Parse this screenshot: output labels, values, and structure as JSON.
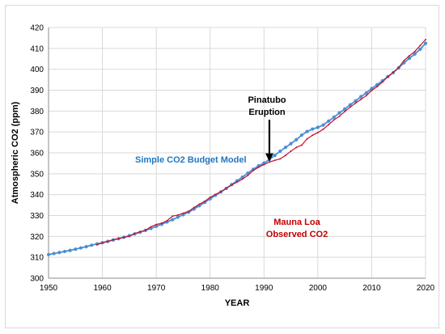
{
  "chart_data": {
    "type": "line",
    "xlabel": "YEAR",
    "ylabel": "Atmospheric CO2 (ppm)",
    "xlim": [
      1950,
      2020
    ],
    "ylim": [
      300,
      420
    ],
    "xticks": [
      1950,
      1960,
      1970,
      1980,
      1990,
      2000,
      2010,
      2020
    ],
    "yticks": [
      300,
      310,
      320,
      330,
      340,
      350,
      360,
      370,
      380,
      390,
      400,
      410,
      420
    ],
    "grid": true,
    "series": [
      {
        "name": "Simple CO2 Budget Model",
        "color": "#4a8fd4",
        "marker": "circle",
        "x": [
          1950,
          1951,
          1952,
          1953,
          1954,
          1955,
          1956,
          1957,
          1958,
          1959,
          1960,
          1961,
          1962,
          1963,
          1964,
          1965,
          1966,
          1967,
          1968,
          1969,
          1970,
          1971,
          1972,
          1973,
          1974,
          1975,
          1976,
          1977,
          1978,
          1979,
          1980,
          1981,
          1982,
          1983,
          1984,
          1985,
          1986,
          1987,
          1988,
          1989,
          1990,
          1991,
          1992,
          1993,
          1994,
          1995,
          1996,
          1997,
          1998,
          1999,
          2000,
          2001,
          2002,
          2003,
          2004,
          2005,
          2006,
          2007,
          2008,
          2009,
          2010,
          2011,
          2012,
          2013,
          2014,
          2015,
          2016,
          2017,
          2018,
          2019,
          2020
        ],
        "y": [
          311.3,
          311.8,
          312.3,
          312.8,
          313.3,
          313.9,
          314.5,
          315.1,
          315.8,
          316.4,
          317.0,
          317.6,
          318.3,
          318.9,
          319.6,
          320.4,
          321.2,
          322.0,
          322.9,
          323.8,
          324.8,
          325.8,
          326.9,
          328.0,
          329.2,
          330.4,
          331.6,
          333.1,
          334.7,
          336.3,
          338.0,
          339.7,
          341.3,
          343.0,
          344.8,
          346.6,
          348.4,
          350.3,
          352.1,
          353.8,
          355.1,
          356.8,
          358.8,
          360.8,
          362.6,
          364.4,
          366.3,
          368.5,
          370.2,
          371.4,
          372.2,
          373.3,
          375.2,
          377.1,
          379.1,
          381.0,
          383.0,
          384.9,
          386.9,
          388.7,
          390.8,
          392.6,
          394.5,
          396.5,
          398.4,
          400.7,
          403.1,
          405.3,
          407.3,
          409.6,
          412.4
        ]
      },
      {
        "name": "Mauna Loa Observed CO2",
        "color": "#c8102e",
        "marker": "none",
        "x": [
          1959,
          1960,
          1961,
          1962,
          1963,
          1964,
          1965,
          1966,
          1967,
          1968,
          1969,
          1970,
          1971,
          1972,
          1973,
          1974,
          1975,
          1976,
          1977,
          1978,
          1979,
          1980,
          1981,
          1982,
          1983,
          1984,
          1985,
          1986,
          1987,
          1988,
          1989,
          1990,
          1991,
          1992,
          1993,
          1994,
          1995,
          1996,
          1997,
          1998,
          1999,
          2000,
          2001,
          2002,
          2003,
          2004,
          2005,
          2006,
          2007,
          2008,
          2009,
          2010,
          2011,
          2012,
          2013,
          2014,
          2015,
          2016,
          2017,
          2018,
          2019,
          2020
        ],
        "y": [
          316.0,
          316.9,
          317.6,
          318.4,
          319.0,
          319.6,
          320.0,
          321.4,
          322.2,
          323.0,
          324.6,
          325.7,
          326.3,
          327.5,
          329.7,
          330.2,
          331.1,
          332.0,
          333.8,
          335.4,
          336.8,
          338.7,
          340.1,
          341.4,
          343.0,
          344.6,
          346.0,
          347.4,
          349.2,
          351.6,
          353.1,
          354.4,
          355.6,
          356.4,
          357.1,
          358.8,
          360.8,
          362.6,
          363.7,
          366.7,
          368.4,
          369.7,
          371.3,
          373.5,
          375.8,
          377.5,
          379.8,
          381.9,
          383.8,
          385.6,
          387.4,
          389.9,
          391.7,
          393.9,
          396.5,
          398.6,
          400.8,
          404.2,
          406.5,
          408.5,
          411.4,
          414.2
        ]
      }
    ],
    "annotations": [
      {
        "text": "Simple CO2 Budget Model",
        "color": "#1f78c1"
      },
      {
        "text_lines": [
          "Mauna Loa",
          "Observed CO2"
        ],
        "color": "#c00000"
      },
      {
        "text_lines": [
          "Pinatubo",
          "Eruption"
        ],
        "color": "#000000",
        "arrow_to": [
          1991,
          355.5
        ]
      }
    ]
  }
}
